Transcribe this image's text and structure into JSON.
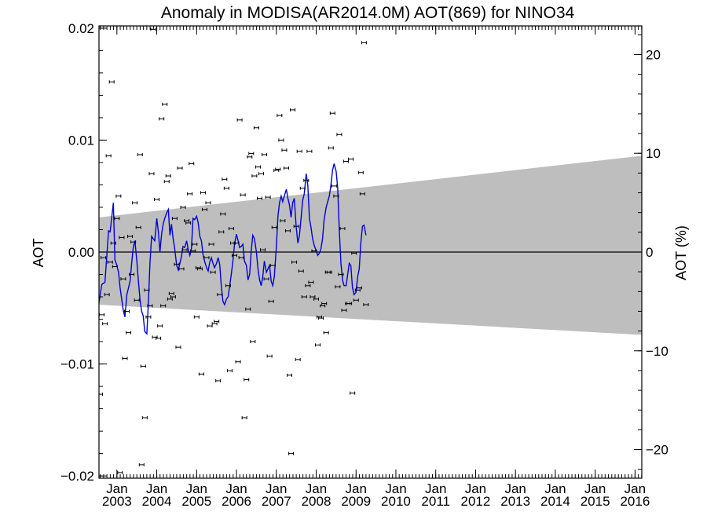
{
  "chart_data": {
    "type": "scatter",
    "title": "Anomaly in MODISA(AR2014.0M) AOT(869) for NINO34",
    "ylabel": "AOT",
    "ylabel_right": "AOT (%)",
    "ylim": [
      -0.0202,
      0.0202
    ],
    "ylim_right": [
      -22.9,
      22.9
    ],
    "yticks": [
      -0.02,
      -0.01,
      0.0,
      0.01,
      0.02
    ],
    "ytick_labels": [
      "−0.02",
      "−0.01",
      "0.00",
      "0.01",
      "0.02"
    ],
    "yticks_right": [
      -20,
      -10,
      0,
      10,
      20
    ],
    "ytick_labels_right": [
      "−20",
      "−10",
      "0",
      "10",
      "20"
    ],
    "xlim": [
      2002.55,
      2016.17
    ],
    "xticks": [
      {
        "month": "Jan",
        "year": "2003",
        "x": 2003.0
      },
      {
        "month": "Jan",
        "year": "2004",
        "x": 2004.0
      },
      {
        "month": "Jan",
        "year": "2005",
        "x": 2005.0
      },
      {
        "month": "Jan",
        "year": "2006",
        "x": 2006.0
      },
      {
        "month": "Jan",
        "year": "2007",
        "x": 2007.0
      },
      {
        "month": "Jan",
        "year": "2008",
        "x": 2008.0
      },
      {
        "month": "Jan",
        "year": "2009",
        "x": 2009.0
      },
      {
        "month": "Jan",
        "year": "2010",
        "x": 2010.0
      },
      {
        "month": "Jan",
        "year": "2011",
        "x": 2011.0
      },
      {
        "month": "Jan",
        "year": "2012",
        "x": 2012.0
      },
      {
        "month": "Jan",
        "year": "2013",
        "x": 2013.0
      },
      {
        "month": "Jan",
        "year": "2014",
        "x": 2014.0
      },
      {
        "month": "Jan",
        "year": "2015",
        "x": 2015.0
      },
      {
        "month": "Jan",
        "year": "2016",
        "x": 2016.0
      }
    ],
    "trend_band": {
      "upper": [
        [
          2002.55,
          0.0031
        ],
        [
          2016.17,
          0.0086
        ]
      ],
      "lower": [
        [
          2002.55,
          -0.0047
        ],
        [
          2016.17,
          -0.0074
        ]
      ],
      "color": "#bebebe"
    },
    "zero_line": 0.0,
    "colors": {
      "smoothed_line": "#0000dd",
      "points": "#000000",
      "band": "#bebebe"
    },
    "points": [
      [
        2002.58,
        -0.0127
      ],
      [
        2002.62,
        -0.0056
      ],
      [
        2002.66,
        -0.0005
      ],
      [
        2002.7,
        -0.0064
      ],
      [
        2002.75,
        -0.0038
      ],
      [
        2002.79,
        0.0086
      ],
      [
        2002.83,
        -0.0009
      ],
      [
        2002.87,
        0.0152
      ],
      [
        2002.91,
        0.0008
      ],
      [
        2002.95,
        -0.0013
      ],
      [
        2003.0,
        0.003
      ],
      [
        2003.04,
        0.005
      ],
      [
        2003.08,
        -0.0197
      ],
      [
        2003.12,
        0.0013
      ],
      [
        2003.16,
        -0.0024
      ],
      [
        2003.2,
        -0.0095
      ],
      [
        2003.25,
        -0.0053
      ],
      [
        2003.29,
        -0.0072
      ],
      [
        2003.33,
        0.0014
      ],
      [
        2003.37,
        -0.002
      ],
      [
        2003.41,
        0.0009
      ],
      [
        2003.45,
        0.0044
      ],
      [
        2003.5,
        -0.0043
      ],
      [
        2003.54,
        0.0022
      ],
      [
        2003.58,
        0.0087
      ],
      [
        2003.62,
        -0.019
      ],
      [
        2003.66,
        -0.0102
      ],
      [
        2003.7,
        -0.0148
      ],
      [
        2003.75,
        -0.0034
      ],
      [
        2003.79,
        -0.0058
      ],
      [
        2003.83,
        -0.0048
      ],
      [
        2003.87,
        0.007
      ],
      [
        2003.91,
        0.0199
      ],
      [
        2003.95,
        -0.0076
      ],
      [
        2004.0,
        0.0047
      ],
      [
        2004.04,
        -0.0077
      ],
      [
        2004.08,
        -0.0066
      ],
      [
        2004.12,
        0.0119
      ],
      [
        2004.16,
        -0.0048
      ],
      [
        2004.2,
        0.0132
      ],
      [
        2004.25,
        0.0063
      ],
      [
        2004.29,
        0.0068
      ],
      [
        2004.33,
        -0.0042
      ],
      [
        2004.37,
        -0.0037
      ],
      [
        2004.41,
        -0.004
      ],
      [
        2004.45,
        0.003
      ],
      [
        2004.5,
        -0.0011
      ],
      [
        2004.54,
        -0.0085
      ],
      [
        2004.58,
        0.0075
      ],
      [
        2004.62,
        -0.0015
      ],
      [
        2004.66,
        0.004
      ],
      [
        2004.7,
        0.0002
      ],
      [
        2004.75,
        0.0028
      ],
      [
        2004.79,
        0.0026
      ],
      [
        2004.83,
        0.0052
      ],
      [
        2004.87,
        0.0079
      ],
      [
        2004.91,
        0.0001
      ],
      [
        2004.95,
        0.0007
      ],
      [
        2005.0,
        -0.0058
      ],
      [
        2005.04,
        -0.0014
      ],
      [
        2005.08,
        -0.0015
      ],
      [
        2005.12,
        -0.0109
      ],
      [
        2005.16,
        0.0053
      ],
      [
        2005.2,
        0.0038
      ],
      [
        2005.25,
        -0.0005
      ],
      [
        2005.29,
        0.0044
      ],
      [
        2005.33,
        -0.0066
      ],
      [
        2005.37,
        0.0007
      ],
      [
        2005.41,
        -0.0018
      ],
      [
        2005.45,
        -0.0064
      ],
      [
        2005.5,
        -0.0062
      ],
      [
        2005.54,
        -0.0115
      ],
      [
        2005.58,
        -0.0038
      ],
      [
        2005.62,
        0.0018
      ],
      [
        2005.66,
        0.0034
      ],
      [
        2005.7,
        0.0065
      ],
      [
        2005.75,
        0.0057
      ],
      [
        2005.79,
        -0.003
      ],
      [
        2005.83,
        -0.0106
      ],
      [
        2005.87,
        0.0021
      ],
      [
        2005.91,
        0.0008
      ],
      [
        2005.95,
        -0.0003
      ],
      [
        2006.0,
        0.0008
      ],
      [
        2006.04,
        -0.0098
      ],
      [
        2006.08,
        0.0118
      ],
      [
        2006.12,
        -0.0005
      ],
      [
        2006.16,
        0.0051
      ],
      [
        2006.2,
        -0.0148
      ],
      [
        2006.25,
        -0.0114
      ],
      [
        2006.29,
        -0.0051
      ],
      [
        2006.33,
        0.0085
      ],
      [
        2006.37,
        0.0088
      ],
      [
        2006.41,
        -0.008
      ],
      [
        2006.45,
        0.0068
      ],
      [
        2006.5,
        0.0111
      ],
      [
        2006.54,
        0.0076
      ],
      [
        2006.58,
        0.0048
      ],
      [
        2006.62,
        0.007
      ],
      [
        2006.66,
        0.0002
      ],
      [
        2006.7,
        0.0087
      ],
      [
        2006.75,
        -0.0024
      ],
      [
        2006.79,
        0.0049
      ],
      [
        2006.83,
        -0.0093
      ],
      [
        2006.87,
        -0.0044
      ],
      [
        2006.91,
        -0.0012
      ],
      [
        2006.95,
        0.0022
      ],
      [
        2007.0,
        0.0073
      ],
      [
        2007.04,
        0.0074
      ],
      [
        2007.08,
        0.0122
      ],
      [
        2007.12,
        0.01
      ],
      [
        2007.16,
        0.0028
      ],
      [
        2007.2,
        0.0091
      ],
      [
        2007.25,
        0.0075
      ],
      [
        2007.29,
        0.0019
      ],
      [
        2007.33,
        -0.011
      ],
      [
        2007.37,
        -0.018
      ],
      [
        2007.41,
        0.0127
      ],
      [
        2007.45,
        -0.0009
      ],
      [
        2007.5,
        0.0023
      ],
      [
        2007.54,
        -0.0096
      ],
      [
        2007.58,
        0.009
      ],
      [
        2007.62,
        -0.0017
      ],
      [
        2007.66,
        0.0057
      ],
      [
        2007.7,
        -0.004
      ],
      [
        2007.75,
        0.0064
      ],
      [
        2007.79,
        -0.003
      ],
      [
        2007.83,
        0.009
      ],
      [
        2007.87,
        -0.0027
      ],
      [
        2007.91,
        -0.004
      ],
      [
        2007.95,
        0.0001
      ],
      [
        2008.0,
        -0.0042
      ],
      [
        2008.04,
        -0.0083
      ],
      [
        2008.08,
        -0.0058
      ],
      [
        2008.12,
        -0.0059
      ],
      [
        2008.16,
        -0.0048
      ],
      [
        2008.2,
        -0.0046
      ],
      [
        2008.25,
        -0.0072
      ],
      [
        2008.29,
        -0.0018
      ],
      [
        2008.33,
        -0.0018
      ],
      [
        2008.37,
        0.0093
      ],
      [
        2008.41,
        0.0124
      ],
      [
        2008.45,
        0.0059
      ],
      [
        2008.5,
        0.005
      ],
      [
        2008.54,
        -0.0031
      ],
      [
        2008.58,
        0.0105
      ],
      [
        2008.62,
        -0.002
      ],
      [
        2008.66,
        0.0021
      ],
      [
        2008.7,
        -0.0052
      ],
      [
        2008.75,
        0.0081
      ],
      [
        2008.79,
        -0.0046
      ],
      [
        2008.83,
        -0.0046
      ],
      [
        2008.87,
        0.0083
      ],
      [
        2008.91,
        -0.0126
      ],
      [
        2008.95,
        -0.0001
      ],
      [
        2009.0,
        -0.0043
      ],
      [
        2009.04,
        -0.0034
      ],
      [
        2009.08,
        -0.0032
      ],
      [
        2009.12,
        0.0071
      ],
      [
        2009.16,
        0.0052
      ],
      [
        2009.2,
        0.0187
      ],
      [
        2009.25,
        -0.0047
      ]
    ],
    "smoothed": [
      [
        2002.55,
        -0.0045
      ],
      [
        2002.62,
        -0.0029
      ],
      [
        2002.7,
        -0.0027
      ],
      [
        2002.79,
        0.0019
      ],
      [
        2002.83,
        0.0018
      ],
      [
        2002.91,
        0.0044
      ],
      [
        2002.95,
        -0.0007
      ],
      [
        2003.0,
        -0.0012
      ],
      [
        2003.04,
        -0.0018
      ],
      [
        2003.08,
        -0.0032
      ],
      [
        2003.16,
        -0.0052
      ],
      [
        2003.2,
        -0.0058
      ],
      [
        2003.25,
        -0.0038
      ],
      [
        2003.33,
        -0.0026
      ],
      [
        2003.37,
        -0.001
      ],
      [
        2003.41,
        0.0004
      ],
      [
        2003.45,
        0.001
      ],
      [
        2003.5,
        -0.0008
      ],
      [
        2003.54,
        -0.0026
      ],
      [
        2003.58,
        -0.0043
      ],
      [
        2003.62,
        -0.0053
      ],
      [
        2003.66,
        -0.0057
      ],
      [
        2003.7,
        -0.0071
      ],
      [
        2003.75,
        -0.0073
      ],
      [
        2003.79,
        -0.0045
      ],
      [
        2003.83,
        -0.001
      ],
      [
        2003.87,
        0.0014
      ],
      [
        2003.91,
        0.0012
      ],
      [
        2003.95,
        0.001
      ],
      [
        2004.0,
        0.003
      ],
      [
        2004.04,
        0.0018
      ],
      [
        2004.08,
        0.0
      ],
      [
        2004.12,
        0.0016
      ],
      [
        2004.16,
        0.0025
      ],
      [
        2004.2,
        0.003
      ],
      [
        2004.25,
        0.0035
      ],
      [
        2004.29,
        0.0038
      ],
      [
        2004.33,
        0.0015
      ],
      [
        2004.37,
        0.0025
      ],
      [
        2004.41,
        0.0012
      ],
      [
        2004.45,
        0.0003
      ],
      [
        2004.5,
        -0.0012
      ],
      [
        2004.54,
        -0.0016
      ],
      [
        2004.58,
        -0.001
      ],
      [
        2004.62,
        -0.0004
      ],
      [
        2004.66,
        0.0005
      ],
      [
        2004.7,
        0.0004
      ],
      [
        2004.75,
        0.001
      ],
      [
        2004.79,
        0.0002
      ],
      [
        2004.83,
        -0.0003
      ],
      [
        2004.87,
        0.0003
      ],
      [
        2004.91,
        0.003
      ],
      [
        2004.95,
        0.0029
      ],
      [
        2005.0,
        0.0032
      ],
      [
        2005.04,
        0.0026
      ],
      [
        2005.08,
        0.0014
      ],
      [
        2005.12,
        0.001
      ],
      [
        2005.16,
        -0.0002
      ],
      [
        2005.2,
        -0.0008
      ],
      [
        2005.25,
        -0.0014
      ],
      [
        2005.29,
        -0.0017
      ],
      [
        2005.33,
        -0.0009
      ],
      [
        2005.37,
        -0.0005
      ],
      [
        2005.41,
        -0.001
      ],
      [
        2005.45,
        -0.0014
      ],
      [
        2005.5,
        -0.001
      ],
      [
        2005.54,
        -0.0005
      ],
      [
        2005.58,
        -0.0011
      ],
      [
        2005.62,
        -0.0031
      ],
      [
        2005.66,
        -0.0044
      ],
      [
        2005.7,
        -0.0047
      ],
      [
        2005.75,
        -0.0042
      ],
      [
        2005.79,
        -0.004
      ],
      [
        2005.83,
        -0.003
      ],
      [
        2005.87,
        -0.002
      ],
      [
        2005.91,
        -0.0008
      ],
      [
        2005.95,
        0.0007
      ],
      [
        2006.0,
        0.0016
      ],
      [
        2006.04,
        0.001
      ],
      [
        2006.08,
        0.0004
      ],
      [
        2006.12,
        0.0005
      ],
      [
        2006.16,
        0.0007
      ],
      [
        2006.2,
        -0.0008
      ],
      [
        2006.25,
        -0.0012
      ],
      [
        2006.29,
        -0.0025
      ],
      [
        2006.33,
        -0.002
      ],
      [
        2006.37,
        0.0001
      ],
      [
        2006.41,
        0.0015
      ],
      [
        2006.45,
        0.0012
      ],
      [
        2006.5,
        0.0
      ],
      [
        2006.54,
        -0.0015
      ],
      [
        2006.58,
        -0.0025
      ],
      [
        2006.62,
        -0.003
      ],
      [
        2006.66,
        -0.0022
      ],
      [
        2006.7,
        -0.0008
      ],
      [
        2006.75,
        -0.0018
      ],
      [
        2006.79,
        -0.0015
      ],
      [
        2006.83,
        -0.0012
      ],
      [
        2006.87,
        -0.0026
      ],
      [
        2006.91,
        -0.003
      ],
      [
        2006.95,
        -0.0022
      ],
      [
        2007.0,
        0.0005
      ],
      [
        2007.04,
        0.0032
      ],
      [
        2007.08,
        0.0044
      ],
      [
        2007.12,
        0.005
      ],
      [
        2007.16,
        0.0045
      ],
      [
        2007.2,
        0.005
      ],
      [
        2007.25,
        0.0056
      ],
      [
        2007.29,
        0.0048
      ],
      [
        2007.33,
        0.0042
      ],
      [
        2007.37,
        0.0031
      ],
      [
        2007.41,
        0.0044
      ],
      [
        2007.45,
        0.0048
      ],
      [
        2007.5,
        0.0022
      ],
      [
        2007.54,
        0.0008
      ],
      [
        2007.58,
        0.0015
      ],
      [
        2007.62,
        0.003
      ],
      [
        2007.66,
        0.0046
      ],
      [
        2007.7,
        0.0052
      ],
      [
        2007.75,
        0.007
      ],
      [
        2007.79,
        0.006
      ],
      [
        2007.83,
        0.003
      ],
      [
        2007.87,
        0.0022
      ],
      [
        2007.91,
        0.0012
      ],
      [
        2007.95,
        0.0006
      ],
      [
        2008.0,
        0.0001
      ],
      [
        2008.04,
        -0.0003
      ],
      [
        2008.08,
        -0.0001
      ],
      [
        2008.12,
        0.0003
      ],
      [
        2008.16,
        0.0012
      ],
      [
        2008.2,
        0.0029
      ],
      [
        2008.25,
        0.004
      ],
      [
        2008.29,
        0.0045
      ],
      [
        2008.33,
        0.005
      ],
      [
        2008.37,
        0.006
      ],
      [
        2008.41,
        0.0073
      ],
      [
        2008.45,
        0.0079
      ],
      [
        2008.5,
        0.0072
      ],
      [
        2008.54,
        0.0057
      ],
      [
        2008.58,
        0.002
      ],
      [
        2008.62,
        -0.001
      ],
      [
        2008.66,
        -0.0025
      ],
      [
        2008.7,
        -0.003
      ],
      [
        2008.75,
        -0.003
      ],
      [
        2008.79,
        -0.002
      ],
      [
        2008.83,
        -0.001
      ],
      [
        2008.87,
        -0.0012
      ],
      [
        2008.91,
        -0.0032
      ],
      [
        2008.95,
        -0.0038
      ],
      [
        2009.0,
        -0.0036
      ],
      [
        2009.04,
        -0.0022
      ],
      [
        2009.08,
        -0.0015
      ],
      [
        2009.12,
        0.0008
      ],
      [
        2009.16,
        0.0023
      ],
      [
        2009.2,
        0.0024
      ],
      [
        2009.25,
        0.0015
      ]
    ]
  }
}
